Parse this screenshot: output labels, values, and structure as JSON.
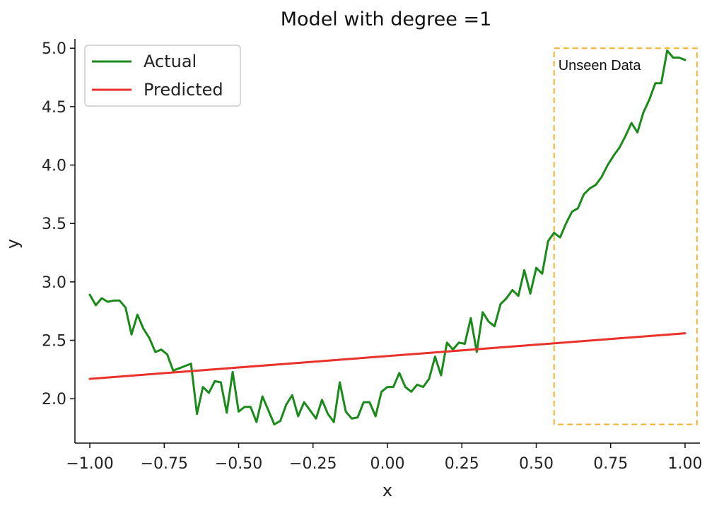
{
  "chart_data": {
    "type": "line",
    "title": "Model with degree =1",
    "xlabel": "x",
    "ylabel": "y",
    "xlim": [
      -1.05,
      1.05
    ],
    "ylim": [
      1.62,
      5.08
    ],
    "xticks": [
      -1.0,
      -0.75,
      -0.5,
      -0.25,
      0.0,
      0.25,
      0.5,
      0.75,
      1.0
    ],
    "xtick_labels": [
      "−1.00",
      "−0.75",
      "−0.50",
      "−0.25",
      "0.00",
      "0.25",
      "0.50",
      "0.75",
      "1.00"
    ],
    "yticks": [
      2.0,
      2.5,
      3.0,
      3.5,
      4.0,
      4.5,
      5.0
    ],
    "ytick_labels": [
      "2.0",
      "2.5",
      "3.0",
      "3.5",
      "4.0",
      "4.5",
      "5.0"
    ],
    "grid": false,
    "legend": {
      "placement": "top-left"
    },
    "series": [
      {
        "name": "Actual",
        "color": "#1a8a1a",
        "x": [
          -1.0,
          -0.98,
          -0.96,
          -0.94,
          -0.92,
          -0.9,
          -0.88,
          -0.86,
          -0.84,
          -0.82,
          -0.8,
          -0.78,
          -0.76,
          -0.74,
          -0.72,
          -0.7,
          -0.68,
          -0.66,
          -0.64,
          -0.62,
          -0.6,
          -0.58,
          -0.56,
          -0.54,
          -0.52,
          -0.5,
          -0.48,
          -0.46,
          -0.44,
          -0.42,
          -0.4,
          -0.38,
          -0.36,
          -0.34,
          -0.32,
          -0.3,
          -0.28,
          -0.26,
          -0.24,
          -0.22,
          -0.2,
          -0.18,
          -0.16,
          -0.14,
          -0.12,
          -0.1,
          -0.08,
          -0.06,
          -0.04,
          -0.02,
          0.0,
          0.02,
          0.04,
          0.06,
          0.08,
          0.1,
          0.12,
          0.14,
          0.16,
          0.18,
          0.2,
          0.22,
          0.24,
          0.26,
          0.28,
          0.3,
          0.32,
          0.34,
          0.36,
          0.38,
          0.4,
          0.42,
          0.44,
          0.46,
          0.48,
          0.5,
          0.52,
          0.54,
          0.56,
          0.58,
          0.6,
          0.62,
          0.64,
          0.66,
          0.68,
          0.7,
          0.72,
          0.74,
          0.76,
          0.78,
          0.8,
          0.82,
          0.84,
          0.86,
          0.88,
          0.9,
          0.92,
          0.94,
          0.96,
          0.98,
          1.0
        ],
        "y": [
          2.89,
          2.8,
          2.86,
          2.83,
          2.84,
          2.84,
          2.78,
          2.55,
          2.72,
          2.6,
          2.52,
          2.4,
          2.42,
          2.38,
          2.24,
          2.26,
          2.28,
          2.3,
          1.87,
          2.1,
          2.05,
          2.15,
          2.14,
          1.88,
          2.23,
          1.89,
          1.93,
          1.93,
          1.8,
          2.02,
          1.9,
          1.78,
          1.81,
          1.95,
          2.03,
          1.85,
          1.97,
          1.9,
          1.83,
          1.99,
          1.87,
          1.8,
          2.14,
          1.89,
          1.83,
          1.84,
          1.97,
          1.97,
          1.85,
          2.06,
          2.1,
          2.1,
          2.22,
          2.1,
          2.06,
          2.12,
          2.1,
          2.17,
          2.36,
          2.2,
          2.48,
          2.42,
          2.48,
          2.47,
          2.69,
          2.4,
          2.74,
          2.66,
          2.62,
          2.81,
          2.86,
          2.93,
          2.88,
          3.1,
          2.9,
          3.12,
          3.07,
          3.35,
          3.42,
          3.38,
          3.5,
          3.6,
          3.63,
          3.75,
          3.8,
          3.83,
          3.9,
          4.0,
          4.08,
          4.15,
          4.25,
          4.36,
          4.28,
          4.45,
          4.56,
          4.7,
          4.7,
          4.98,
          4.92,
          4.92,
          4.9
        ]
      },
      {
        "name": "Predicted",
        "color": "#e8322a",
        "x": [
          -1.0,
          1.0
        ],
        "y": [
          2.17,
          2.56
        ]
      }
    ],
    "annotations": [
      {
        "text": "Unseen Data",
        "region": {
          "x": [
            0.56,
            1.04
          ],
          "y": [
            1.78,
            5.0
          ]
        },
        "color": "#f2b233",
        "style": "dashed"
      }
    ]
  }
}
